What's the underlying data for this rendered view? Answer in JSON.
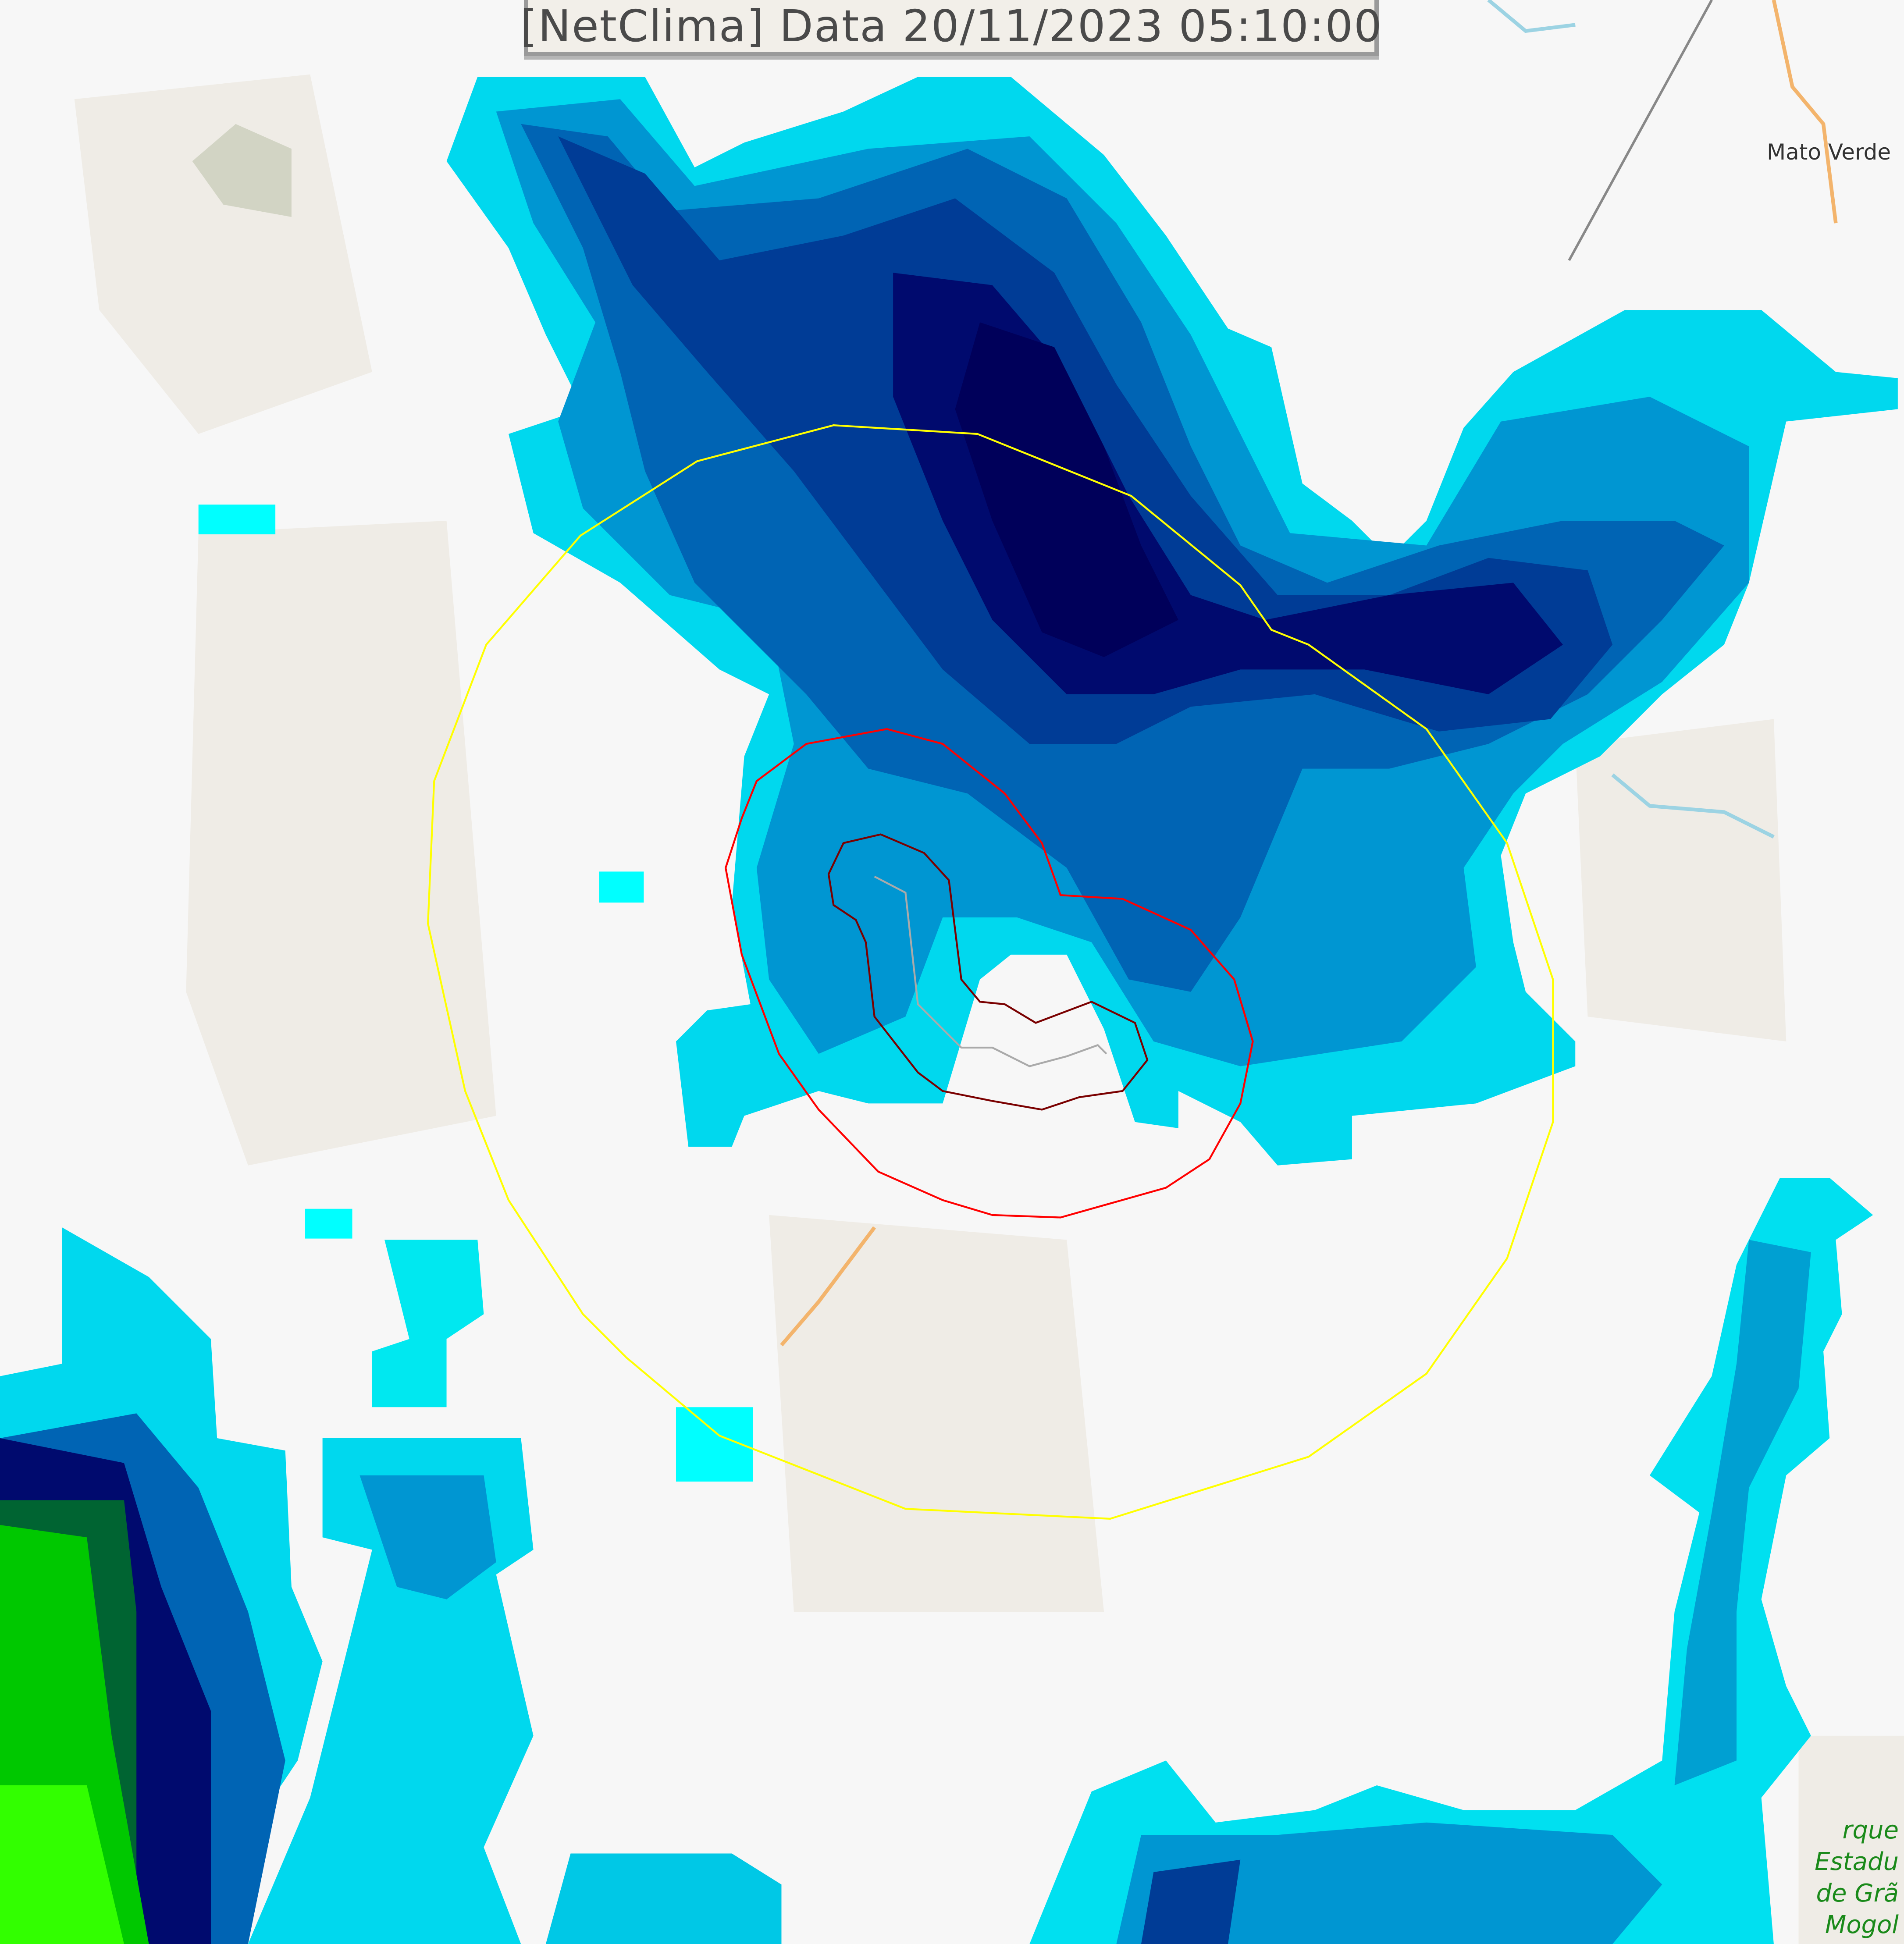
{
  "title": "[NetClima] Data 20/11/2023 05:10:00",
  "places": {
    "mato_verde": "Mato Verde",
    "park": [
      "rque",
      "Estadu",
      "de Grã",
      "Mogol"
    ]
  },
  "colors": {
    "contour_outer": "#ffff00",
    "contour_middle": "#ff0000",
    "contour_inner": "#8b0000",
    "radar_scale": [
      "#00ffff",
      "#00c8e6",
      "#0096d2",
      "#0064b4",
      "#003c96",
      "#000a6e",
      "#00003c",
      "#006432",
      "#00c800",
      "#32ff00",
      "#96ff00"
    ]
  }
}
